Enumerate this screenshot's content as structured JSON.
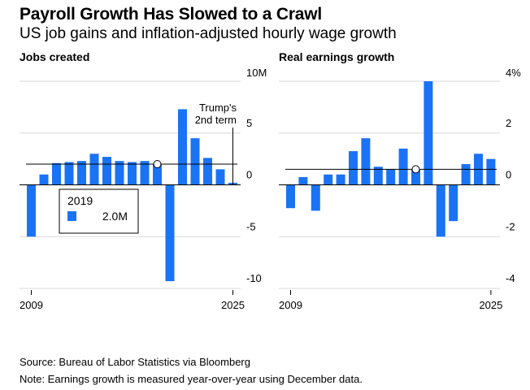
{
  "header": {
    "title": "Payroll Growth Has Slowed to a Crawl",
    "subtitle": "US job gains and inflation-adjusted hourly wage growth"
  },
  "footer": {
    "source": "Source: Bureau of Labor Statistics via Bloomberg",
    "note": "Note: Earnings growth is measured year-over-year using December data."
  },
  "colors": {
    "bar": "#1a73f5",
    "grid": "#d9d9d9",
    "axis": "#000000"
  },
  "chart_data": [
    {
      "type": "bar",
      "title": "Jobs created",
      "x": [
        2009,
        2010,
        2011,
        2012,
        2013,
        2014,
        2015,
        2016,
        2017,
        2018,
        2019,
        2020,
        2021,
        2022,
        2023,
        2024,
        2025
      ],
      "values": [
        -5.0,
        1.0,
        2.1,
        2.2,
        2.3,
        3.0,
        2.7,
        2.3,
        2.2,
        2.3,
        2.0,
        -9.3,
        7.3,
        4.5,
        2.6,
        1.5,
        0.2
      ],
      "unit": "M",
      "ylim": [
        -10,
        10
      ],
      "yticks": [
        {
          "value": 10,
          "label": "10M"
        },
        {
          "value": 5,
          "label": "5"
        },
        {
          "value": 0,
          "label": "0"
        },
        {
          "value": -5,
          "label": "-5"
        },
        {
          "value": -10,
          "label": "-10"
        }
      ],
      "xticks": [
        {
          "value": 2009,
          "label": "2009"
        },
        {
          "value": 2025,
          "label": "2025"
        }
      ],
      "reference": {
        "year": 2019,
        "value": 2.0
      },
      "legend": {
        "year": "2019",
        "value_label": "2.0M"
      },
      "annotation": {
        "line1": "Trump's",
        "line2": "2nd term",
        "year": 2025
      }
    },
    {
      "type": "bar",
      "title": "Real earnings growth",
      "x": [
        2009,
        2010,
        2011,
        2012,
        2013,
        2014,
        2015,
        2016,
        2017,
        2018,
        2019,
        2020,
        2021,
        2022,
        2023,
        2024,
        2025
      ],
      "values": [
        -0.9,
        0.3,
        -1.0,
        0.4,
        0.4,
        1.3,
        1.8,
        0.7,
        0.6,
        1.4,
        0.6,
        4.0,
        -2.0,
        -1.4,
        0.8,
        1.2,
        1.0
      ],
      "unit": "%",
      "ylim": [
        -4,
        4
      ],
      "yticks": [
        {
          "value": 4,
          "label": "4%"
        },
        {
          "value": 2,
          "label": "2"
        },
        {
          "value": 0,
          "label": "0"
        },
        {
          "value": -2,
          "label": "-2"
        },
        {
          "value": -4,
          "label": "-4"
        }
      ],
      "xticks": [
        {
          "value": 2009,
          "label": "2009"
        },
        {
          "value": 2025,
          "label": "2025"
        }
      ],
      "reference": {
        "year": 2019,
        "value": 0.6
      }
    }
  ]
}
